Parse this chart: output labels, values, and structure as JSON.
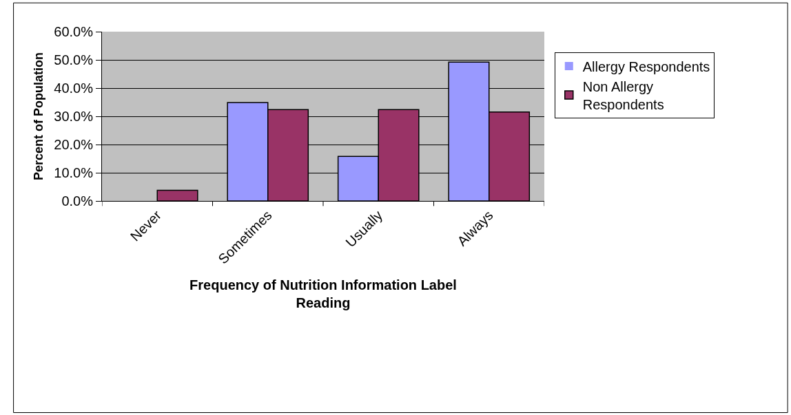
{
  "chart_data": {
    "type": "bar",
    "xlabel": "Frequency of Nutrition Information Label Reading",
    "ylabel": "Percent of Population",
    "categories": [
      "Never",
      "Sometimes",
      "Usually",
      "Always"
    ],
    "series": [
      {
        "name": "Allergy Respondents",
        "color": "#9999ff",
        "values": [
          0,
          34.9,
          15.8,
          49.2
        ]
      },
      {
        "name": "Non Allergy Respondents",
        "color": "#993366",
        "values": [
          3.8,
          32.4,
          32.4,
          31.5
        ]
      }
    ],
    "ylim": [
      0,
      60
    ],
    "yticks": [
      {
        "value": 0,
        "label": "0.0%"
      },
      {
        "value": 10,
        "label": "10.0%"
      },
      {
        "value": 20,
        "label": "20.0%"
      },
      {
        "value": 30,
        "label": "30.0%"
      },
      {
        "value": 40,
        "label": "40.0%"
      },
      {
        "value": 50,
        "label": "50.0%"
      },
      {
        "value": 60,
        "label": "60.0%"
      }
    ],
    "grid": "y",
    "legend": "right"
  }
}
